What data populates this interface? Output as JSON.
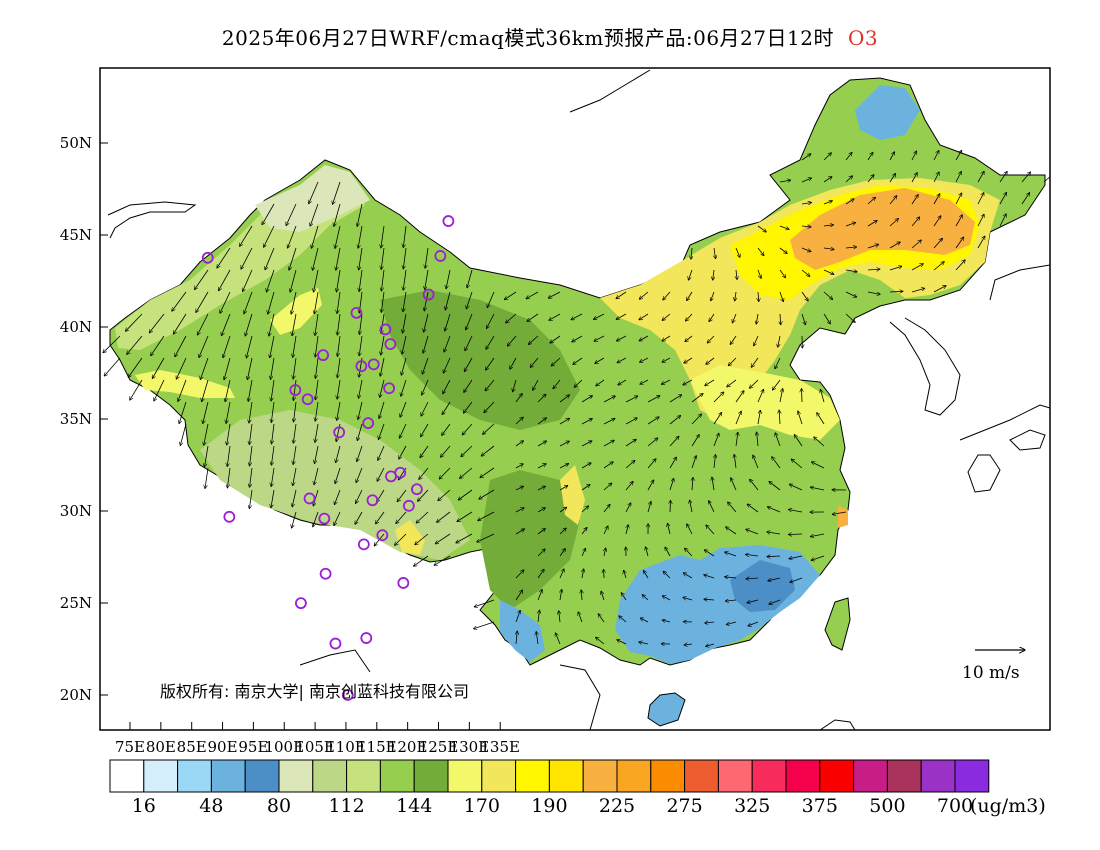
{
  "header": {
    "title": "2025年06月27日WRF/cmaq模式36km预报产品:06月27日12时",
    "species": "O3"
  },
  "map": {
    "x_ticks": [
      "75E",
      "80E",
      "85E",
      "90E",
      "95E",
      "100E",
      "105E",
      "110E",
      "115E",
      "120E",
      "125E",
      "130E",
      "135E"
    ],
    "y_ticks": [
      "50N",
      "45N",
      "40N",
      "35N",
      "30N",
      "25N",
      "20N"
    ],
    "copyright": "版权所有: 南京大学| 南京创蓝科技有限公司",
    "vector_scale_label": "10  m/s"
  },
  "legend": {
    "colors": [
      "#ffffff",
      "#d4eefb",
      "#9bd8f5",
      "#6cb2de",
      "#4b8fc6",
      "#dbe7b9",
      "#bcd886",
      "#c6e27c",
      "#96cf50",
      "#74ac3a",
      "#f2f86a",
      "#f2e65a",
      "#fff600",
      "#ffe400",
      "#f8b040",
      "#f9a622",
      "#fb8b00",
      "#ee5d2f",
      "#fd6873",
      "#f72c5c",
      "#f5004a",
      "#fb0000",
      "#c81c86",
      "#a9335d",
      "#9a32c8",
      "#8b2be0"
    ],
    "labels": [
      "16",
      "48",
      "80",
      "112",
      "144",
      "170",
      "190",
      "225",
      "275",
      "325",
      "375",
      "500",
      "700"
    ],
    "unit": "(ug/m3)"
  },
  "stations": [
    {
      "lon": 87.6,
      "lat": 43.8
    },
    {
      "lon": 91.1,
      "lat": 29.7
    },
    {
      "lon": 101.8,
      "lat": 36.6
    },
    {
      "lon": 103.8,
      "lat": 36.1
    },
    {
      "lon": 106.3,
      "lat": 38.5
    },
    {
      "lon": 111.7,
      "lat": 40.8
    },
    {
      "lon": 112.5,
      "lat": 37.9
    },
    {
      "lon": 114.5,
      "lat": 38.0
    },
    {
      "lon": 116.4,
      "lat": 39.9
    },
    {
      "lon": 117.2,
      "lat": 39.1
    },
    {
      "lon": 117.0,
      "lat": 36.7
    },
    {
      "lon": 113.6,
      "lat": 34.8
    },
    {
      "lon": 108.9,
      "lat": 34.3
    },
    {
      "lon": 104.1,
      "lat": 30.7
    },
    {
      "lon": 106.5,
      "lat": 29.6
    },
    {
      "lon": 106.7,
      "lat": 26.6
    },
    {
      "lon": 102.7,
      "lat": 25.0
    },
    {
      "lon": 108.3,
      "lat": 22.8
    },
    {
      "lon": 110.3,
      "lat": 20.0
    },
    {
      "lon": 113.3,
      "lat": 23.1
    },
    {
      "lon": 112.9,
      "lat": 28.2
    },
    {
      "lon": 114.3,
      "lat": 30.6
    },
    {
      "lon": 115.9,
      "lat": 28.7
    },
    {
      "lon": 117.3,
      "lat": 31.9
    },
    {
      "lon": 118.8,
      "lat": 32.1
    },
    {
      "lon": 120.2,
      "lat": 30.3
    },
    {
      "lon": 121.5,
      "lat": 31.2
    },
    {
      "lon": 119.3,
      "lat": 26.1
    },
    {
      "lon": 123.4,
      "lat": 41.8
    },
    {
      "lon": 125.3,
      "lat": 43.9
    },
    {
      "lon": 126.6,
      "lat": 45.8
    }
  ]
}
